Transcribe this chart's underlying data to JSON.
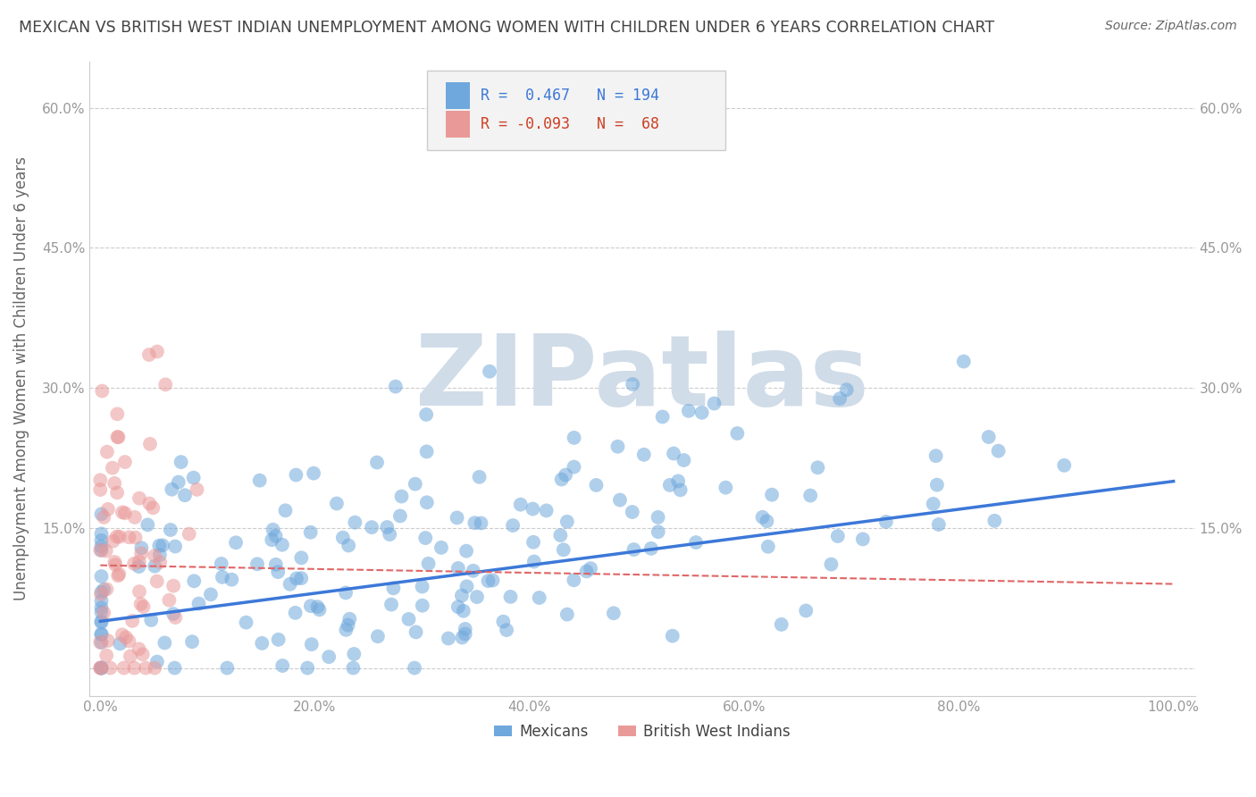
{
  "title": "MEXICAN VS BRITISH WEST INDIAN UNEMPLOYMENT AMONG WOMEN WITH CHILDREN UNDER 6 YEARS CORRELATION CHART",
  "source": "Source: ZipAtlas.com",
  "ylabel": "Unemployment Among Women with Children Under 6 years",
  "xlim": [
    -0.01,
    1.02
  ],
  "ylim": [
    -0.03,
    0.65
  ],
  "xticks": [
    0.0,
    0.2,
    0.4,
    0.6,
    0.8,
    1.0
  ],
  "xtick_labels": [
    "0.0%",
    "20.0%",
    "40.0%",
    "60.0%",
    "80.0%",
    "100.0%"
  ],
  "yticks": [
    0.0,
    0.15,
    0.3,
    0.45,
    0.6
  ],
  "ytick_labels": [
    "",
    "15.0%",
    "30.0%",
    "45.0%",
    "60.0%"
  ],
  "grid_color": "#cccccc",
  "background_color": "#ffffff",
  "watermark": "ZIPatlas",
  "watermark_color": "#d0dce8",
  "blue_color": "#6fa8dc",
  "pink_color": "#ea9999",
  "blue_line_color": "#3c78d8",
  "pink_line_color": "#e06666",
  "R_blue": 0.467,
  "N_blue": 194,
  "R_pink": -0.093,
  "N_pink": 68,
  "legend_box_color": "#f3f3f3",
  "title_color": "#434343",
  "legend_blue_text_color": "#3c78d8",
  "legend_pink_text_color": "#cc4125",
  "axis_label_color": "#666666",
  "tick_color": "#999999",
  "blue_line_y0": 0.05,
  "blue_line_y1": 0.2,
  "pink_line_y0": 0.11,
  "pink_line_y1": 0.09
}
